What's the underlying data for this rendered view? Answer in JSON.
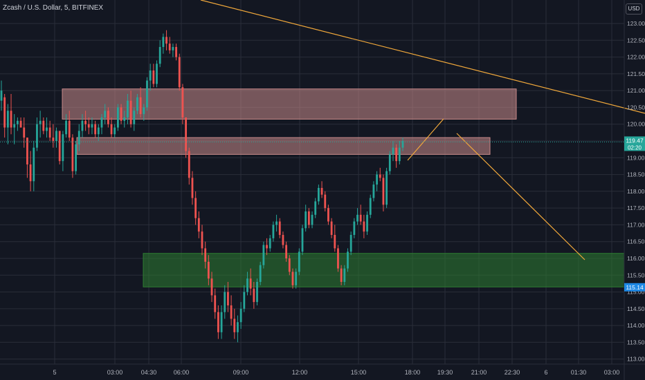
{
  "header": {
    "symbol_title": "Zcash / U.S. Dollar, 5, BITFINEX",
    "currency": "USD"
  },
  "colors": {
    "background": "#131722",
    "grid": "#2a2e39",
    "up": "#26a69a",
    "down": "#ef5350",
    "axis_text": "#b2b5be",
    "trendline": "#f2a93b",
    "resistance_zone": "#c98a8a",
    "support_zone": "#2e7d32",
    "last_price_label": "#26a69a",
    "support_label": "#1e88e5"
  },
  "chart_data": {
    "type": "candlestick",
    "title": "Zcash / U.S. Dollar, 5, BITFINEX",
    "ylim": [
      112.85,
      123.7
    ],
    "y_ticks": [
      "113.00",
      "113.50",
      "114.00",
      "114.50",
      "115.00",
      "115.50",
      "116.00",
      "116.50",
      "117.00",
      "117.50",
      "118.00",
      "118.50",
      "119.00",
      "119.50",
      "120.00",
      "120.50",
      "121.00",
      "121.50",
      "122.00",
      "122.50",
      "123.00"
    ],
    "x_ticks": [
      "5",
      "03:00",
      "04:30",
      "06:00",
      "09:00",
      "12:00",
      "15:00",
      "18:00",
      "19:30",
      "21:00",
      "22:30",
      "6",
      "01:30",
      "03:00"
    ],
    "price_labels": [
      {
        "name": "last",
        "value": "119.47",
        "sub": "02:20"
      },
      {
        "name": "support",
        "value": "115.14"
      }
    ],
    "zones": [
      {
        "name": "resistance-upper",
        "from": "04:00 (day 5)",
        "to": "21:45",
        "top": 121.05,
        "bottom": 120.15
      },
      {
        "name": "resistance-lower",
        "from": "04:20 (day 5)",
        "to": "20:45",
        "top": 119.6,
        "bottom": 119.1
      },
      {
        "name": "support",
        "from": "04:45",
        "to": "03:00 (day 6)",
        "top": 116.15,
        "bottom": 115.15
      }
    ],
    "trendlines": [
      {
        "name": "long-descending",
        "from": {
          "x": "(before 06:00)",
          "y": 124.2
        },
        "to": {
          "x": "(beyond 03:00 day 6)",
          "y": 120.3
        }
      },
      {
        "name": "projection-up",
        "from": {
          "x": "18:00",
          "y": 118.9
        },
        "to": {
          "x": "19:30",
          "y": 120.0
        }
      },
      {
        "name": "projection-down",
        "from": {
          "x": "20:00",
          "y": 119.75
        },
        "to": {
          "x": "01:30",
          "y": 115.9
        }
      }
    ],
    "candles": [
      {
        "o": 120.7,
        "h": 121.3,
        "l": 120.4,
        "c": 121.0
      },
      {
        "o": 120.8,
        "h": 120.9,
        "l": 119.6,
        "c": 119.9
      },
      {
        "o": 119.9,
        "h": 120.6,
        "l": 119.4,
        "c": 120.4
      },
      {
        "o": 120.4,
        "h": 120.9,
        "l": 119.7,
        "c": 119.9
      },
      {
        "o": 119.9,
        "h": 120.3,
        "l": 119.4,
        "c": 120.0
      },
      {
        "o": 120.0,
        "h": 120.2,
        "l": 119.8,
        "c": 120.1
      },
      {
        "o": 120.1,
        "h": 120.2,
        "l": 119.9,
        "c": 119.9
      },
      {
        "o": 119.9,
        "h": 120.2,
        "l": 119.3,
        "c": 119.6
      },
      {
        "o": 119.6,
        "h": 119.6,
        "l": 118.4,
        "c": 118.8
      },
      {
        "o": 118.8,
        "h": 119.2,
        "l": 118.0,
        "c": 118.3
      },
      {
        "o": 118.3,
        "h": 119.5,
        "l": 118.0,
        "c": 119.3
      },
      {
        "o": 119.3,
        "h": 120.2,
        "l": 119.2,
        "c": 120.0
      },
      {
        "o": 120.0,
        "h": 120.4,
        "l": 119.6,
        "c": 120.1
      },
      {
        "o": 120.1,
        "h": 120.2,
        "l": 119.7,
        "c": 119.8
      },
      {
        "o": 119.8,
        "h": 120.2,
        "l": 119.6,
        "c": 119.9
      },
      {
        "o": 119.9,
        "h": 120.1,
        "l": 119.5,
        "c": 119.6
      },
      {
        "o": 119.6,
        "h": 120.0,
        "l": 119.3,
        "c": 119.5
      },
      {
        "o": 119.5,
        "h": 119.9,
        "l": 119.3,
        "c": 119.8
      },
      {
        "o": 119.8,
        "h": 119.8,
        "l": 118.8,
        "c": 118.9
      },
      {
        "o": 118.9,
        "h": 119.8,
        "l": 118.6,
        "c": 119.7
      },
      {
        "o": 119.7,
        "h": 120.3,
        "l": 119.6,
        "c": 120.1
      },
      {
        "o": 120.1,
        "h": 120.4,
        "l": 119.5,
        "c": 119.6
      },
      {
        "o": 119.6,
        "h": 119.7,
        "l": 118.4,
        "c": 118.6
      },
      {
        "o": 118.6,
        "h": 119.5,
        "l": 118.5,
        "c": 119.4
      },
      {
        "o": 119.4,
        "h": 120.0,
        "l": 119.2,
        "c": 119.8
      },
      {
        "o": 119.8,
        "h": 120.3,
        "l": 119.6,
        "c": 120.1
      },
      {
        "o": 120.1,
        "h": 120.4,
        "l": 119.8,
        "c": 120.0
      },
      {
        "o": 120.0,
        "h": 120.2,
        "l": 119.7,
        "c": 119.9
      },
      {
        "o": 119.9,
        "h": 120.2,
        "l": 119.7,
        "c": 120.0
      },
      {
        "o": 120.0,
        "h": 120.1,
        "l": 119.6,
        "c": 119.7
      },
      {
        "o": 119.7,
        "h": 120.0,
        "l": 119.5,
        "c": 119.9
      },
      {
        "o": 119.9,
        "h": 120.3,
        "l": 119.7,
        "c": 120.2
      },
      {
        "o": 120.2,
        "h": 120.6,
        "l": 120.0,
        "c": 120.4
      },
      {
        "o": 120.4,
        "h": 120.5,
        "l": 119.9,
        "c": 120.0
      },
      {
        "o": 120.0,
        "h": 120.2,
        "l": 119.6,
        "c": 119.7
      },
      {
        "o": 119.7,
        "h": 120.0,
        "l": 119.6,
        "c": 119.9
      },
      {
        "o": 119.9,
        "h": 120.6,
        "l": 119.8,
        "c": 120.5
      },
      {
        "o": 120.5,
        "h": 120.6,
        "l": 120.0,
        "c": 120.1
      },
      {
        "o": 120.1,
        "h": 120.4,
        "l": 119.9,
        "c": 120.2
      },
      {
        "o": 120.2,
        "h": 120.9,
        "l": 120.0,
        "c": 120.7
      },
      {
        "o": 120.7,
        "h": 121.0,
        "l": 119.9,
        "c": 120.0
      },
      {
        "o": 120.0,
        "h": 120.5,
        "l": 119.8,
        "c": 120.4
      },
      {
        "o": 120.4,
        "h": 120.9,
        "l": 120.3,
        "c": 120.8
      },
      {
        "o": 120.8,
        "h": 121.1,
        "l": 120.2,
        "c": 120.3
      },
      {
        "o": 120.3,
        "h": 120.6,
        "l": 120.1,
        "c": 120.5
      },
      {
        "o": 120.5,
        "h": 121.4,
        "l": 120.4,
        "c": 121.3
      },
      {
        "o": 121.3,
        "h": 121.8,
        "l": 121.0,
        "c": 121.6
      },
      {
        "o": 121.6,
        "h": 121.8,
        "l": 121.1,
        "c": 121.2
      },
      {
        "o": 121.2,
        "h": 121.9,
        "l": 121.1,
        "c": 121.8
      },
      {
        "o": 121.8,
        "h": 122.5,
        "l": 121.7,
        "c": 122.3
      },
      {
        "o": 122.3,
        "h": 122.7,
        "l": 122.1,
        "c": 122.6
      },
      {
        "o": 122.6,
        "h": 122.8,
        "l": 122.2,
        "c": 122.4
      },
      {
        "o": 122.4,
        "h": 122.6,
        "l": 122.1,
        "c": 122.2
      },
      {
        "o": 122.2,
        "h": 122.4,
        "l": 122.0,
        "c": 122.3
      },
      {
        "o": 122.3,
        "h": 122.4,
        "l": 121.9,
        "c": 122.0
      },
      {
        "o": 122.0,
        "h": 122.1,
        "l": 121.0,
        "c": 121.1
      },
      {
        "o": 121.1,
        "h": 121.2,
        "l": 120.0,
        "c": 120.2
      },
      {
        "o": 120.2,
        "h": 120.2,
        "l": 119.0,
        "c": 119.2
      },
      {
        "o": 119.2,
        "h": 119.3,
        "l": 118.2,
        "c": 118.4
      },
      {
        "o": 118.4,
        "h": 118.6,
        "l": 117.6,
        "c": 117.8
      },
      {
        "o": 117.8,
        "h": 118.0,
        "l": 117.0,
        "c": 117.2
      },
      {
        "o": 117.2,
        "h": 117.4,
        "l": 116.6,
        "c": 116.8
      },
      {
        "o": 116.8,
        "h": 117.0,
        "l": 116.1,
        "c": 116.3
      },
      {
        "o": 116.3,
        "h": 116.5,
        "l": 115.7,
        "c": 115.9
      },
      {
        "o": 115.9,
        "h": 116.1,
        "l": 115.2,
        "c": 115.4
      },
      {
        "o": 115.4,
        "h": 115.6,
        "l": 114.7,
        "c": 114.9
      },
      {
        "o": 114.9,
        "h": 115.1,
        "l": 114.2,
        "c": 114.4
      },
      {
        "o": 114.4,
        "h": 114.6,
        "l": 113.6,
        "c": 113.8
      },
      {
        "o": 113.8,
        "h": 114.6,
        "l": 113.6,
        "c": 114.4
      },
      {
        "o": 114.4,
        "h": 115.2,
        "l": 114.2,
        "c": 115.0
      },
      {
        "o": 115.0,
        "h": 115.3,
        "l": 114.4,
        "c": 114.6
      },
      {
        "o": 114.6,
        "h": 114.9,
        "l": 114.0,
        "c": 114.2
      },
      {
        "o": 114.2,
        "h": 114.5,
        "l": 113.6,
        "c": 113.8
      },
      {
        "o": 113.8,
        "h": 114.3,
        "l": 113.5,
        "c": 114.1
      },
      {
        "o": 114.1,
        "h": 114.7,
        "l": 113.9,
        "c": 114.5
      },
      {
        "o": 114.5,
        "h": 115.2,
        "l": 114.4,
        "c": 115.0
      },
      {
        "o": 115.0,
        "h": 115.6,
        "l": 114.9,
        "c": 115.4
      },
      {
        "o": 115.4,
        "h": 115.7,
        "l": 114.9,
        "c": 115.1
      },
      {
        "o": 115.1,
        "h": 115.3,
        "l": 114.5,
        "c": 114.7
      },
      {
        "o": 114.7,
        "h": 115.4,
        "l": 114.6,
        "c": 115.3
      },
      {
        "o": 115.3,
        "h": 115.9,
        "l": 115.2,
        "c": 115.8
      },
      {
        "o": 115.8,
        "h": 116.5,
        "l": 115.7,
        "c": 116.4
      },
      {
        "o": 116.4,
        "h": 116.6,
        "l": 116.1,
        "c": 116.3
      },
      {
        "o": 116.3,
        "h": 116.7,
        "l": 116.2,
        "c": 116.6
      },
      {
        "o": 116.6,
        "h": 117.1,
        "l": 116.5,
        "c": 117.0
      },
      {
        "o": 117.0,
        "h": 117.3,
        "l": 116.8,
        "c": 117.1
      },
      {
        "o": 117.1,
        "h": 117.2,
        "l": 116.6,
        "c": 116.7
      },
      {
        "o": 116.7,
        "h": 116.8,
        "l": 116.3,
        "c": 116.4
      },
      {
        "o": 116.4,
        "h": 116.5,
        "l": 115.9,
        "c": 116.0
      },
      {
        "o": 116.0,
        "h": 116.1,
        "l": 115.5,
        "c": 115.6
      },
      {
        "o": 115.6,
        "h": 115.7,
        "l": 115.1,
        "c": 115.2
      },
      {
        "o": 115.2,
        "h": 115.7,
        "l": 115.1,
        "c": 115.6
      },
      {
        "o": 115.6,
        "h": 116.3,
        "l": 115.5,
        "c": 116.2
      },
      {
        "o": 116.2,
        "h": 117.0,
        "l": 116.1,
        "c": 116.9
      },
      {
        "o": 116.9,
        "h": 117.6,
        "l": 116.8,
        "c": 117.4
      },
      {
        "o": 117.4,
        "h": 117.5,
        "l": 116.9,
        "c": 117.0
      },
      {
        "o": 117.0,
        "h": 117.4,
        "l": 116.9,
        "c": 117.3
      },
      {
        "o": 117.3,
        "h": 117.8,
        "l": 117.2,
        "c": 117.7
      },
      {
        "o": 117.7,
        "h": 118.2,
        "l": 117.6,
        "c": 118.1
      },
      {
        "o": 118.1,
        "h": 118.3,
        "l": 117.8,
        "c": 117.9
      },
      {
        "o": 117.9,
        "h": 118.0,
        "l": 117.4,
        "c": 117.5
      },
      {
        "o": 117.5,
        "h": 117.6,
        "l": 117.0,
        "c": 117.1
      },
      {
        "o": 117.1,
        "h": 117.2,
        "l": 116.6,
        "c": 116.7
      },
      {
        "o": 116.7,
        "h": 117.0,
        "l": 116.2,
        "c": 116.3
      },
      {
        "o": 116.3,
        "h": 116.4,
        "l": 115.6,
        "c": 115.7
      },
      {
        "o": 115.7,
        "h": 115.8,
        "l": 115.2,
        "c": 115.3
      },
      {
        "o": 115.3,
        "h": 115.8,
        "l": 115.2,
        "c": 115.7
      },
      {
        "o": 115.7,
        "h": 116.3,
        "l": 115.6,
        "c": 116.2
      },
      {
        "o": 116.2,
        "h": 116.8,
        "l": 116.1,
        "c": 116.7
      },
      {
        "o": 116.7,
        "h": 117.2,
        "l": 116.6,
        "c": 117.1
      },
      {
        "o": 117.1,
        "h": 117.5,
        "l": 117.0,
        "c": 117.3
      },
      {
        "o": 117.3,
        "h": 117.6,
        "l": 117.0,
        "c": 117.1
      },
      {
        "o": 117.1,
        "h": 117.3,
        "l": 116.6,
        "c": 116.8
      },
      {
        "o": 116.8,
        "h": 117.4,
        "l": 116.7,
        "c": 117.3
      },
      {
        "o": 117.3,
        "h": 117.9,
        "l": 117.2,
        "c": 117.8
      },
      {
        "o": 117.8,
        "h": 118.3,
        "l": 117.7,
        "c": 118.2
      },
      {
        "o": 118.2,
        "h": 118.6,
        "l": 118.0,
        "c": 118.5
      },
      {
        "o": 118.5,
        "h": 118.7,
        "l": 118.3,
        "c": 118.4
      },
      {
        "o": 118.4,
        "h": 118.5,
        "l": 117.4,
        "c": 117.6
      },
      {
        "o": 117.6,
        "h": 118.7,
        "l": 117.5,
        "c": 118.6
      },
      {
        "o": 118.6,
        "h": 119.2,
        "l": 118.5,
        "c": 119.1
      },
      {
        "o": 119.1,
        "h": 119.5,
        "l": 118.9,
        "c": 119.3
      },
      {
        "o": 119.3,
        "h": 119.4,
        "l": 118.7,
        "c": 118.9
      },
      {
        "o": 118.9,
        "h": 119.5,
        "l": 118.8,
        "c": 119.3
      },
      {
        "o": 119.3,
        "h": 119.6,
        "l": 119.2,
        "c": 119.5
      }
    ]
  }
}
